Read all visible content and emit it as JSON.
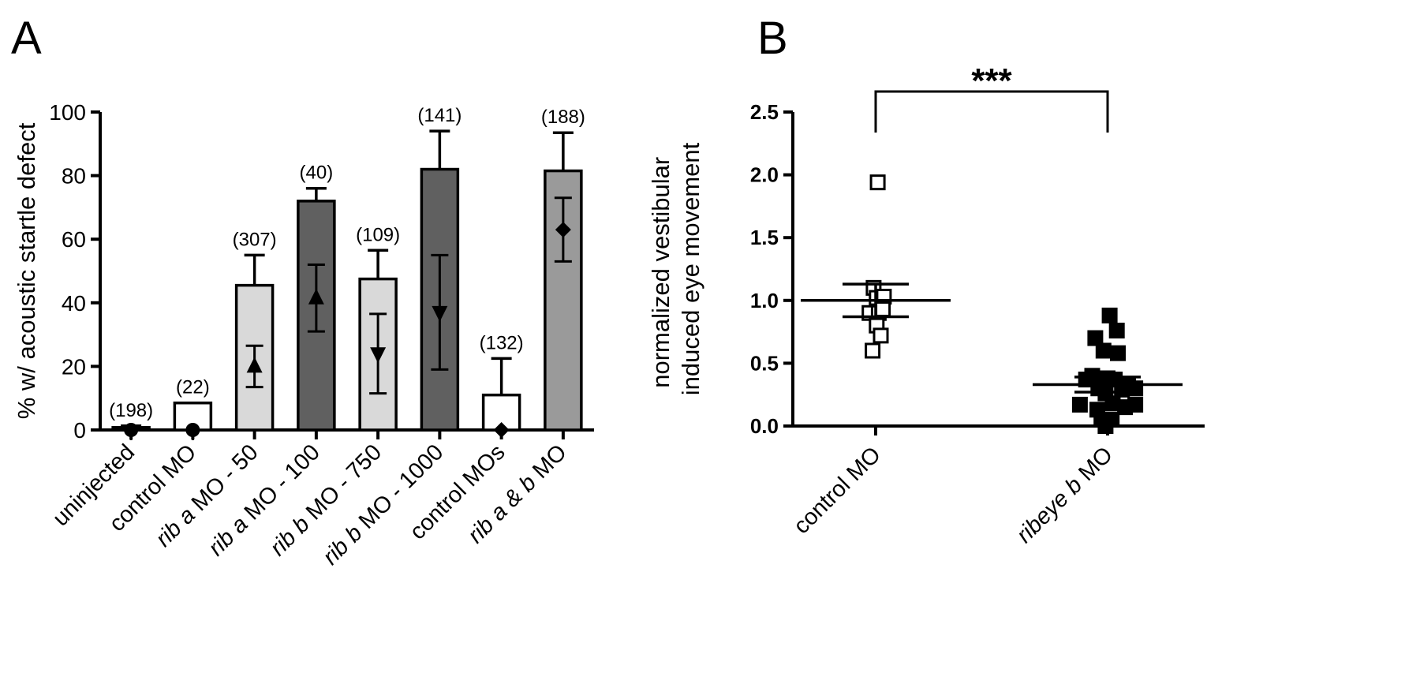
{
  "chart_data": [
    {
      "panel": "A",
      "type": "bar",
      "ylabel": "% w/ acoustic startle defect",
      "ylim": [
        0,
        100
      ],
      "yticks": [
        "0",
        "20",
        "40",
        "60",
        "80",
        "100"
      ],
      "categories": [
        [
          {
            "t": "uninjected",
            "i": false
          }
        ],
        [
          {
            "t": "control MO",
            "i": false
          }
        ],
        [
          {
            "t": "rib",
            "i": true
          },
          {
            "t": " a",
            "i": true
          },
          {
            "t": " MO - 50",
            "i": false
          }
        ],
        [
          {
            "t": "rib",
            "i": true
          },
          {
            "t": " a",
            "i": true
          },
          {
            "t": " MO - 100",
            "i": false
          }
        ],
        [
          {
            "t": "rib",
            "i": true
          },
          {
            "t": " b",
            "i": true
          },
          {
            "t": " MO - 750",
            "i": false
          }
        ],
        [
          {
            "t": "rib",
            "i": true
          },
          {
            "t": " b",
            "i": true
          },
          {
            "t": " MO - 1000",
            "i": false
          }
        ],
        [
          {
            "t": "control MOs",
            "i": false
          }
        ],
        [
          {
            "t": "rib a & b",
            "i": true
          },
          {
            "t": " MO",
            "i": false
          }
        ]
      ],
      "bars": [
        {
          "value": 0.8,
          "err": 0.5,
          "fill": "#ffffff",
          "n": "(198)",
          "marker": "circle",
          "marker_value": 0,
          "marker_err": 0.5
        },
        {
          "value": 8.5,
          "err": 0,
          "fill": "#ffffff",
          "n": "(22)",
          "marker": "circle",
          "marker_value": 0,
          "marker_err": 0
        },
        {
          "value": 45.5,
          "err": 9.5,
          "fill": "#d9d9d9",
          "n": "(307)",
          "marker": "triangle-up",
          "marker_value": 20,
          "marker_err": 6.5
        },
        {
          "value": 72,
          "err": 4,
          "fill": "#606060",
          "n": "(40)",
          "marker": "triangle-up",
          "marker_value": 41.5,
          "marker_err": 10.5
        },
        {
          "value": 47.5,
          "err": 9,
          "fill": "#d9d9d9",
          "n": "(109)",
          "marker": "triangle-down",
          "marker_value": 24,
          "marker_err": 12.5
        },
        {
          "value": 82,
          "err": 12,
          "fill": "#606060",
          "n": "(141)",
          "marker": "triangle-down",
          "marker_value": 37,
          "marker_err": 18
        },
        {
          "value": 11,
          "err": 11.5,
          "fill": "#ffffff",
          "n": "(132)",
          "marker": "diamond",
          "marker_value": 0,
          "marker_err": 0
        },
        {
          "value": 81.5,
          "err": 12,
          "fill": "#9a9a9a",
          "n": "(188)",
          "marker": "diamond",
          "marker_value": 63,
          "marker_err": 10
        }
      ]
    },
    {
      "panel": "B",
      "type": "scatter",
      "ylabel_lines": [
        "normalized vestibular",
        "induced eye movement"
      ],
      "ylim": [
        0,
        2.5
      ],
      "yticks": [
        "0.0",
        "0.5",
        "1.0",
        "1.5",
        "2.0",
        "2.5"
      ],
      "categories": [
        [
          {
            "t": "control MO",
            "i": false
          }
        ],
        [
          {
            "t": "ribeye b",
            "i": true
          },
          {
            "t": " MO",
            "i": false
          }
        ]
      ],
      "series": [
        {
          "fill": "#ffffff",
          "mean": 1.0,
          "sem": 0.13,
          "points": [
            {
              "dx": 0.02,
              "y": 1.94
            },
            {
              "dx": -0.02,
              "y": 1.1
            },
            {
              "dx": 0.01,
              "y": 1.02
            },
            {
              "dx": 0.08,
              "y": 1.03
            },
            {
              "dx": -0.06,
              "y": 0.9
            },
            {
              "dx": 0.03,
              "y": 0.9
            },
            {
              "dx": 0.07,
              "y": 0.93
            },
            {
              "dx": 0.01,
              "y": 0.8
            },
            {
              "dx": 0.05,
              "y": 0.72
            },
            {
              "dx": -0.03,
              "y": 0.6
            }
          ]
        },
        {
          "fill": "#000000",
          "mean": 0.33,
          "sem": 0.06,
          "points": [
            {
              "dx": 0.02,
              "y": 0.88
            },
            {
              "dx": 0.09,
              "y": 0.76
            },
            {
              "dx": -0.12,
              "y": 0.7
            },
            {
              "dx": -0.04,
              "y": 0.6
            },
            {
              "dx": 0.1,
              "y": 0.58
            },
            {
              "dx": -0.15,
              "y": 0.4
            },
            {
              "dx": 0.0,
              "y": 0.38
            },
            {
              "dx": 0.07,
              "y": 0.37
            },
            {
              "dx": -0.21,
              "y": 0.37
            },
            {
              "dx": 0.2,
              "y": 0.32
            },
            {
              "dx": 0.27,
              "y": 0.3
            },
            {
              "dx": -0.09,
              "y": 0.3
            },
            {
              "dx": 0.14,
              "y": 0.29
            },
            {
              "dx": -0.02,
              "y": 0.26
            },
            {
              "dx": 0.05,
              "y": 0.18
            },
            {
              "dx": 0.27,
              "y": 0.17
            },
            {
              "dx": 0.17,
              "y": 0.15
            },
            {
              "dx": -0.27,
              "y": 0.17
            },
            {
              "dx": -0.1,
              "y": 0.13
            },
            {
              "dx": -0.06,
              "y": 0.05
            },
            {
              "dx": 0.04,
              "y": 0.05
            },
            {
              "dx": -0.02,
              "y": 0.0
            }
          ]
        }
      ],
      "significance": "***"
    }
  ]
}
